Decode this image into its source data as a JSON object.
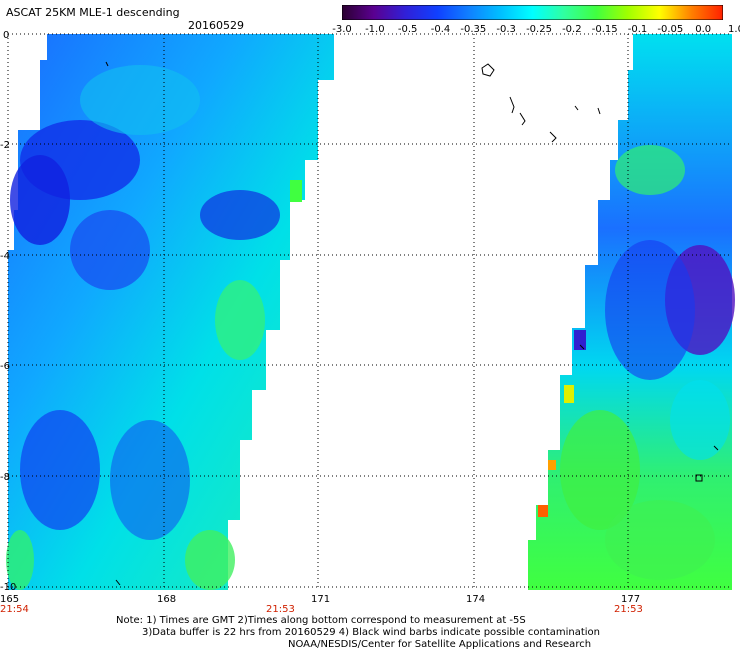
{
  "header": {
    "title": "ASCAT 25KM MLE-1 descending",
    "date": "20160529"
  },
  "colorbar": {
    "labels": [
      "-3.0",
      "-1.0",
      "-0.5",
      "-0.4",
      "-0.35",
      "-0.3",
      "-0.25",
      "-0.2",
      "-0.15",
      "-0.1",
      "-0.05",
      "0.0",
      "1.0"
    ],
    "colors": [
      "#2b0030",
      "#5a0090",
      "#3020d8",
      "#1040ff",
      "#1080ff",
      "#00c0ff",
      "#00ffff",
      "#30ffa0",
      "#40ff40",
      "#a0ff00",
      "#ffff00",
      "#ff8000",
      "#ff2000"
    ]
  },
  "axes": {
    "y_labels": [
      "0",
      "-2",
      "-4",
      "-6",
      "-8",
      "-10"
    ],
    "x_labels": [
      "165",
      "168",
      "171",
      "174",
      "177"
    ],
    "time_labels": [
      "21:54",
      "21:53",
      "21:53"
    ]
  },
  "notes": {
    "line1": "Note: 1) Times are GMT 2)Times along bottom correspond to measurement at -5S",
    "line2": "3)Data buffer is 22 hrs from 20160529 4) Black wind barbs indicate possible contamination",
    "line3": "NOAA/NESDIS/Center for Satellite Applications and Research"
  }
}
